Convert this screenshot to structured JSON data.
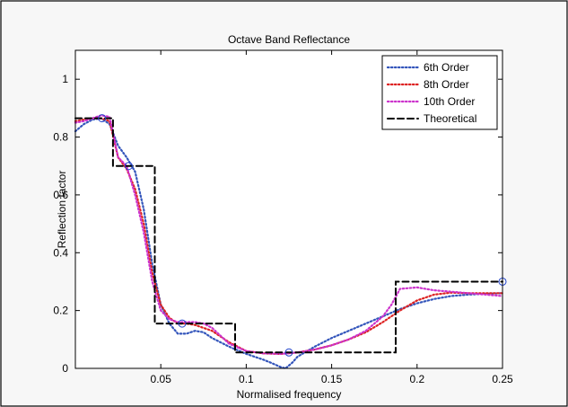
{
  "chart_data": {
    "type": "line",
    "title": "Octave Band Reflectance",
    "xlabel": "Normalised frequency",
    "ylabel": "Reflection factor",
    "xlim": [
      0,
      0.25
    ],
    "ylim": [
      0,
      1.1
    ],
    "xticks": [
      0.05,
      0.1,
      0.15,
      0.2,
      0.25
    ],
    "xtick_labels": [
      "0.05",
      "0.1",
      "0.15",
      "0.2",
      "0.25"
    ],
    "yticks": [
      0,
      0.2,
      0.4,
      0.6,
      0.8,
      1
    ],
    "ytick_labels": [
      "0",
      "0.2",
      "0.4",
      "0.6",
      "0.8",
      "1"
    ],
    "grid": false,
    "legend_position": "top-right",
    "series": [
      {
        "name": "6th Order",
        "color": "#3355bb",
        "style": "dotted",
        "x": [
          0,
          0.005,
          0.01,
          0.015,
          0.02,
          0.025,
          0.03,
          0.035,
          0.04,
          0.045,
          0.05,
          0.055,
          0.06,
          0.065,
          0.07,
          0.075,
          0.08,
          0.09,
          0.1,
          0.11,
          0.115,
          0.12,
          0.123,
          0.127,
          0.13,
          0.14,
          0.15,
          0.16,
          0.17,
          0.18,
          0.19,
          0.2,
          0.21,
          0.22,
          0.23,
          0.24,
          0.25
        ],
        "y": [
          0.82,
          0.845,
          0.86,
          0.865,
          0.845,
          0.77,
          0.73,
          0.68,
          0.55,
          0.36,
          0.22,
          0.155,
          0.12,
          0.12,
          0.13,
          0.125,
          0.105,
          0.075,
          0.05,
          0.03,
          0.018,
          0.005,
          0.0,
          0.02,
          0.04,
          0.075,
          0.105,
          0.13,
          0.155,
          0.18,
          0.205,
          0.225,
          0.24,
          0.25,
          0.255,
          0.258,
          0.26
        ]
      },
      {
        "name": "8th Order",
        "color": "#dd2222",
        "style": "dotted",
        "x": [
          0,
          0.005,
          0.01,
          0.015,
          0.02,
          0.025,
          0.03,
          0.035,
          0.04,
          0.045,
          0.05,
          0.055,
          0.06,
          0.065,
          0.07,
          0.08,
          0.09,
          0.1,
          0.11,
          0.12,
          0.13,
          0.14,
          0.15,
          0.16,
          0.17,
          0.18,
          0.19,
          0.2,
          0.21,
          0.22,
          0.23,
          0.24,
          0.25
        ],
        "y": [
          0.855,
          0.86,
          0.865,
          0.865,
          0.855,
          0.73,
          0.69,
          0.62,
          0.5,
          0.33,
          0.22,
          0.175,
          0.155,
          0.155,
          0.15,
          0.13,
          0.09,
          0.06,
          0.052,
          0.05,
          0.055,
          0.065,
          0.08,
          0.1,
          0.125,
          0.16,
          0.2,
          0.235,
          0.255,
          0.262,
          0.26,
          0.26,
          0.26
        ]
      },
      {
        "name": "10th Order",
        "color": "#cc33cc",
        "style": "dotted",
        "x": [
          0,
          0.005,
          0.01,
          0.015,
          0.02,
          0.025,
          0.03,
          0.035,
          0.04,
          0.045,
          0.05,
          0.055,
          0.06,
          0.065,
          0.07,
          0.075,
          0.08,
          0.09,
          0.1,
          0.11,
          0.12,
          0.13,
          0.14,
          0.15,
          0.16,
          0.17,
          0.18,
          0.185,
          0.19,
          0.2,
          0.21,
          0.22,
          0.23,
          0.24,
          0.25
        ],
        "y": [
          0.85,
          0.855,
          0.865,
          0.875,
          0.87,
          0.73,
          0.7,
          0.6,
          0.47,
          0.3,
          0.2,
          0.17,
          0.16,
          0.16,
          0.16,
          0.155,
          0.14,
          0.085,
          0.06,
          0.052,
          0.05,
          0.055,
          0.065,
          0.08,
          0.1,
          0.13,
          0.18,
          0.22,
          0.275,
          0.28,
          0.27,
          0.265,
          0.26,
          0.255,
          0.25
        ]
      },
      {
        "name": "Theoretical",
        "color": "#000000",
        "style": "dashed",
        "x": [
          0,
          0.022,
          0.022,
          0.0465,
          0.0465,
          0.0935,
          0.0935,
          0.1875,
          0.1875,
          0.25
        ],
        "y": [
          0.865,
          0.865,
          0.7,
          0.7,
          0.155,
          0.155,
          0.055,
          0.055,
          0.3,
          0.3
        ]
      }
    ],
    "markers": {
      "shape": "circle",
      "color": "#2244cc",
      "points": [
        {
          "x": 0.0156,
          "y": 0.865
        },
        {
          "x": 0.0312,
          "y": 0.7
        },
        {
          "x": 0.0625,
          "y": 0.155
        },
        {
          "x": 0.125,
          "y": 0.055
        },
        {
          "x": 0.25,
          "y": 0.3
        }
      ]
    }
  }
}
